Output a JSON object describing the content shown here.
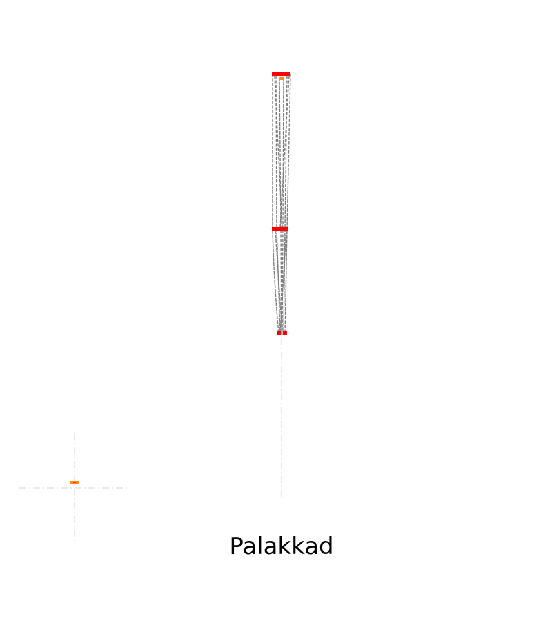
{
  "caption": "Palakkad",
  "colors": {
    "guide": "#cccccc",
    "outline": "#7f7f7f",
    "marker": "#ff0000",
    "point": "#ff8c1a"
  }
}
